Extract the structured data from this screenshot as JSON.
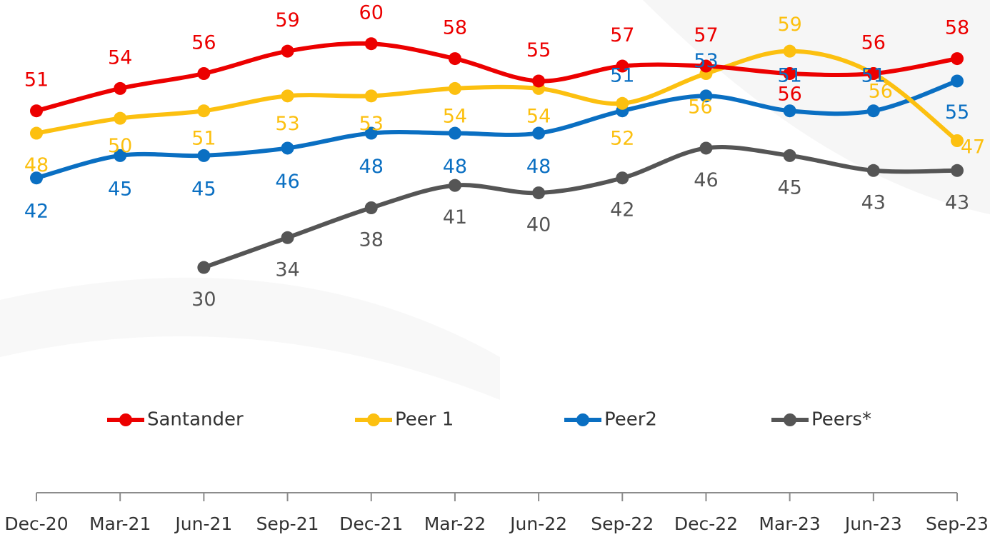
{
  "chart_data": {
    "type": "line",
    "categories": [
      "Dec-20",
      "Mar-21",
      "Jun-21",
      "Sep-21",
      "Dec-21",
      "Mar-22",
      "Jun-22",
      "Sep-22",
      "Dec-22",
      "Mar-23",
      "Jun-23",
      "Sep-23"
    ],
    "series": [
      {
        "name": "Santander",
        "color": "#ec0000",
        "values": [
          51,
          54,
          56,
          59,
          60,
          58,
          55,
          57,
          57,
          56,
          56,
          58
        ]
      },
      {
        "name": "Peer 1",
        "color": "#fcc010",
        "values": [
          48,
          50,
          51,
          53,
          53,
          54,
          54,
          52,
          56,
          59,
          56,
          47
        ]
      },
      {
        "name": "Peer2",
        "color": "#0a6fc2",
        "values": [
          42,
          45,
          45,
          46,
          48,
          48,
          48,
          51,
          53,
          51,
          51,
          55
        ]
      },
      {
        "name": "Peers*",
        "color": "#555555",
        "values": [
          null,
          null,
          30,
          34,
          38,
          41,
          40,
          42,
          46,
          45,
          43,
          43
        ]
      }
    ],
    "ylim": [
      20,
      65
    ],
    "legend": "bottom",
    "grid": false
  }
}
